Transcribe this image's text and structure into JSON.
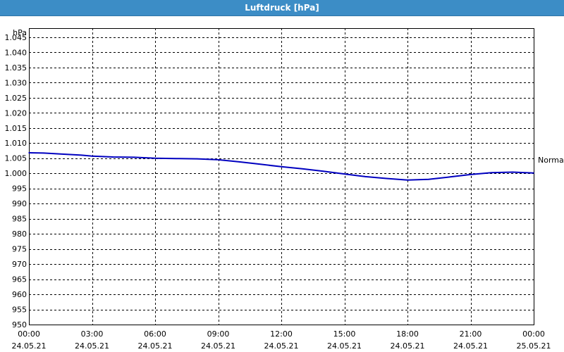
{
  "window": {
    "title": "Luftdruck [hPa]"
  },
  "chart_data": {
    "type": "line",
    "title": "Luftdruck [hPa]",
    "ylabel": "hPa",
    "xlabel": "",
    "ylim": [
      950,
      1048
    ],
    "xlim": [
      0,
      24
    ],
    "grid": true,
    "yticks": [
      950,
      955,
      960,
      965,
      970,
      975,
      980,
      985,
      990,
      995,
      1000,
      1005,
      1010,
      1015,
      1020,
      1025,
      1030,
      1035,
      1040,
      1045
    ],
    "ytick_labels": [
      "950",
      "955",
      "960",
      "965",
      "970",
      "975",
      "980",
      "985",
      "990",
      "995",
      "1.000",
      "1.005",
      "1.010",
      "1.015",
      "1.020",
      "1.025",
      "1.030",
      "1.035",
      "1.040",
      "1.045"
    ],
    "xticks": [
      0,
      3,
      6,
      9,
      12,
      15,
      18,
      21,
      24
    ],
    "xtick_labels": [
      {
        "time": "00:00",
        "date": "24.05.21"
      },
      {
        "time": "03:00",
        "date": "24.05.21"
      },
      {
        "time": "06:00",
        "date": "24.05.21"
      },
      {
        "time": "09:00",
        "date": "24.05.21"
      },
      {
        "time": "12:00",
        "date": "24.05.21"
      },
      {
        "time": "15:00",
        "date": "24.05.21"
      },
      {
        "time": "18:00",
        "date": "24.05.21"
      },
      {
        "time": "21:00",
        "date": "24.05.21"
      },
      {
        "time": "00:00",
        "date": "25.05.21"
      }
    ],
    "reference_line": {
      "label": "Normal",
      "value": 1004.5
    },
    "series": [
      {
        "color": "#0000c0",
        "x": [
          0,
          0.7,
          1.5,
          2.5,
          3.0,
          4.0,
          5.0,
          6.0,
          7.0,
          8.0,
          9.0,
          10.0,
          11.0,
          12.0,
          13.0,
          14.0,
          15.0,
          16.0,
          17.0,
          18.0,
          19.0,
          20.0,
          21.0,
          22.0,
          23.0,
          24.0
        ],
        "y": [
          1006.8,
          1006.7,
          1006.4,
          1006.0,
          1005.7,
          1005.4,
          1005.3,
          1005.0,
          1004.9,
          1004.8,
          1004.5,
          1003.8,
          1003.0,
          1002.2,
          1001.5,
          1000.7,
          999.8,
          998.9,
          998.3,
          997.8,
          998.0,
          998.8,
          999.6,
          1000.2,
          1000.4,
          1000.1
        ]
      }
    ]
  }
}
